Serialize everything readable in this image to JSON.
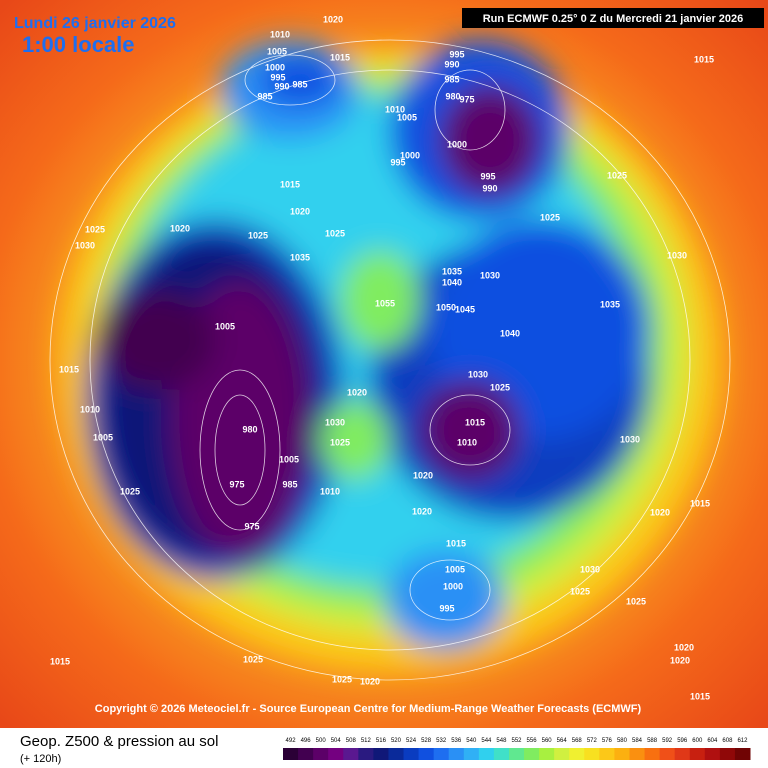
{
  "header": {
    "date": "Lundi 26 janvier 2026",
    "time": "1:00 locale",
    "run": "Run ECMWF 0.25° 0 Z du Mercredi 21 janvier 2026"
  },
  "copyright": "Copyright © 2026 Meteociel.fr - Source European Centre for Medium-Range Weather Forecasts (ECMWF)",
  "footer": {
    "title": "Geop. Z500 & pression au sol",
    "subtitle": "(+ 120h)"
  },
  "legend": {
    "levels": [
      492,
      496,
      500,
      504,
      508,
      512,
      516,
      520,
      524,
      528,
      532,
      536,
      540,
      544,
      548,
      552,
      556,
      560,
      564,
      568,
      572,
      576,
      580,
      584,
      588,
      592,
      596,
      600,
      604,
      608,
      612
    ],
    "colors": [
      "#2b0036",
      "#420050",
      "#5c0068",
      "#740080",
      "#5a1890",
      "#2a1a80",
      "#101878",
      "#0a2a9a",
      "#0a3cc0",
      "#1050e0",
      "#1e6ef0",
      "#2a90f5",
      "#30b0f5",
      "#30d0ee",
      "#40e0c8",
      "#60e890",
      "#80ec60",
      "#a8f040",
      "#d0f040",
      "#f0f030",
      "#f8e020",
      "#fcc818",
      "#fcb010",
      "#fa9010",
      "#f87010",
      "#f05018",
      "#e03818",
      "#c82010",
      "#b01010",
      "#900808",
      "#700404"
    ]
  },
  "isobar_labels": [
    1010,
    1005,
    1000,
    995,
    990,
    985,
    985,
    1015,
    1020,
    995,
    990,
    985,
    980,
    975,
    1010,
    1005,
    1000,
    995,
    1000,
    995,
    990,
    1025,
    1025,
    1015,
    1015,
    1020,
    1025,
    1030,
    1020,
    1025,
    1035,
    1025,
    1055,
    1035,
    1040,
    1030,
    1050,
    1045,
    1040,
    1005,
    1015,
    1010,
    1005,
    980,
    975,
    975,
    985,
    1005,
    1010,
    1030,
    1025,
    1020,
    1030,
    1025,
    1015,
    1010,
    1020,
    1020,
    1015,
    1005,
    1000,
    995,
    1025,
    1025,
    1025,
    1020,
    1015,
    1030,
    1025,
    1025,
    1020,
    1020,
    1015,
    1030,
    1035,
    1030,
    1020,
    1015
  ]
}
